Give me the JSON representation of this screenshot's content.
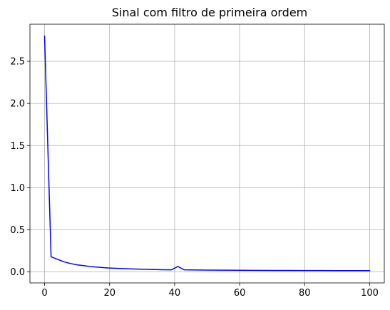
{
  "chart_data": {
    "type": "line",
    "title": "Sinal com filtro de primeira ordem",
    "xlabel": "",
    "ylabel": "",
    "xlim": [
      -4.5,
      104.5
    ],
    "ylim": [
      -0.13,
      2.94
    ],
    "grid": true,
    "x_ticks": [
      0,
      20,
      40,
      60,
      80,
      100
    ],
    "x_tick_labels": [
      "0",
      "20",
      "40",
      "60",
      "80",
      "100"
    ],
    "y_ticks": [
      0.0,
      0.5,
      1.0,
      1.5,
      2.0,
      2.5
    ],
    "y_tick_labels": [
      "0.0",
      "0.5",
      "1.0",
      "1.5",
      "2.0",
      "2.5"
    ],
    "series": [
      {
        "color": "#0000ff",
        "x": [
          0,
          2,
          4,
          6,
          8,
          10,
          12,
          14,
          16,
          18,
          20,
          22,
          24,
          26,
          28,
          30,
          32,
          34,
          36,
          39,
          41,
          43,
          45,
          50,
          55,
          60,
          65,
          70,
          75,
          80,
          85,
          90,
          95,
          100
        ],
        "y": [
          2.8,
          0.18,
          0.15,
          0.12,
          0.1,
          0.085,
          0.075,
          0.065,
          0.058,
          0.052,
          0.047,
          0.043,
          0.04,
          0.037,
          0.035,
          0.033,
          0.031,
          0.029,
          0.027,
          0.025,
          0.065,
          0.025,
          0.024,
          0.022,
          0.021,
          0.02,
          0.019,
          0.018,
          0.018,
          0.017,
          0.017,
          0.016,
          0.016,
          0.016
        ]
      }
    ]
  },
  "colors": {
    "grid": "#b0b0b0",
    "axes": "#000000",
    "line": "#0000ff"
  }
}
